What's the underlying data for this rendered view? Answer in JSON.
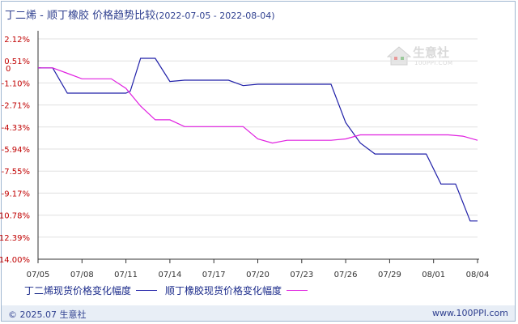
{
  "title": {
    "main": "丁二烯 - 顺丁橡胶 价格趋势比较",
    "range": "(2022-07-05 - 2022-08-04)"
  },
  "logo": {
    "text": "生意社",
    "sub": "100PPI.COM"
  },
  "footer": {
    "copyright": "© 2025.07 生意社",
    "url": "www.100PPI.com"
  },
  "colors": {
    "series1": "#1f1fa8",
    "series2": "#e020e0",
    "axis": "#333333",
    "grid": "#e0e0e0",
    "tick_label": "#c00000"
  },
  "chart_data": {
    "type": "line",
    "title": "丁二烯 - 顺丁橡胶 价格趋势比较",
    "xlabel": "",
    "ylabel": "",
    "x_ticks": [
      "07/05",
      "07/08",
      "07/11",
      "07/14",
      "07/17",
      "07/20",
      "07/23",
      "07/26",
      "07/29",
      "08/01",
      "08/04"
    ],
    "y_ticks": [
      "2.12%",
      "0.51%",
      "-1.10%",
      "-2.71%",
      "-4.33%",
      "-5.94%",
      "-7.55%",
      "-9.17%",
      "-10.78%",
      "-12.39%",
      "-14.00%"
    ],
    "ylim": [
      -14.0,
      2.12
    ],
    "xlim": [
      0,
      30
    ],
    "legend_position": "bottom",
    "series": [
      {
        "name": "丁二烯现货价格变化幅度",
        "points": [
          [
            0,
            0
          ],
          [
            1,
            0
          ],
          [
            2,
            -1.85
          ],
          [
            3,
            -1.85
          ],
          [
            4,
            -1.85
          ],
          [
            5,
            -1.85
          ],
          [
            6,
            -1.85
          ],
          [
            6.3,
            -1.7
          ],
          [
            7,
            0.7
          ],
          [
            7.7,
            0.7
          ],
          [
            8,
            0.7
          ],
          [
            9,
            -1.0
          ],
          [
            10,
            -0.9
          ],
          [
            11,
            -0.9
          ],
          [
            12,
            -0.9
          ],
          [
            13,
            -0.9
          ],
          [
            14,
            -1.3
          ],
          [
            15,
            -1.2
          ],
          [
            16,
            -1.2
          ],
          [
            17,
            -1.2
          ],
          [
            18,
            -1.2
          ],
          [
            19,
            -1.2
          ],
          [
            20,
            -1.2
          ],
          [
            21,
            -4.0
          ],
          [
            22,
            -5.5
          ],
          [
            23,
            -6.3
          ],
          [
            24,
            -6.3
          ],
          [
            25,
            -6.3
          ],
          [
            26,
            -6.3
          ],
          [
            26.5,
            -6.3
          ],
          [
            27.5,
            -8.5
          ],
          [
            28,
            -8.5
          ],
          [
            28.5,
            -8.5
          ],
          [
            29.5,
            -11.2
          ],
          [
            30,
            -11.2
          ]
        ]
      },
      {
        "name": "顺丁橡胶现货价格变化幅度",
        "points": [
          [
            0,
            0
          ],
          [
            1,
            0
          ],
          [
            2,
            -0.4
          ],
          [
            3,
            -0.8
          ],
          [
            4,
            -0.8
          ],
          [
            5,
            -0.8
          ],
          [
            6,
            -1.5
          ],
          [
            7,
            -2.8
          ],
          [
            8,
            -3.8
          ],
          [
            9,
            -3.8
          ],
          [
            10,
            -4.3
          ],
          [
            11,
            -4.3
          ],
          [
            12,
            -4.3
          ],
          [
            13,
            -4.3
          ],
          [
            14,
            -4.3
          ],
          [
            15,
            -5.2
          ],
          [
            16,
            -5.5
          ],
          [
            17,
            -5.3
          ],
          [
            18,
            -5.3
          ],
          [
            19,
            -5.3
          ],
          [
            20,
            -5.3
          ],
          [
            21,
            -5.2
          ],
          [
            22,
            -4.9
          ],
          [
            23,
            -4.9
          ],
          [
            24,
            -4.9
          ],
          [
            25,
            -4.9
          ],
          [
            26,
            -4.9
          ],
          [
            27,
            -4.9
          ],
          [
            28,
            -4.9
          ],
          [
            29,
            -5.0
          ],
          [
            30,
            -5.3
          ]
        ]
      }
    ]
  }
}
